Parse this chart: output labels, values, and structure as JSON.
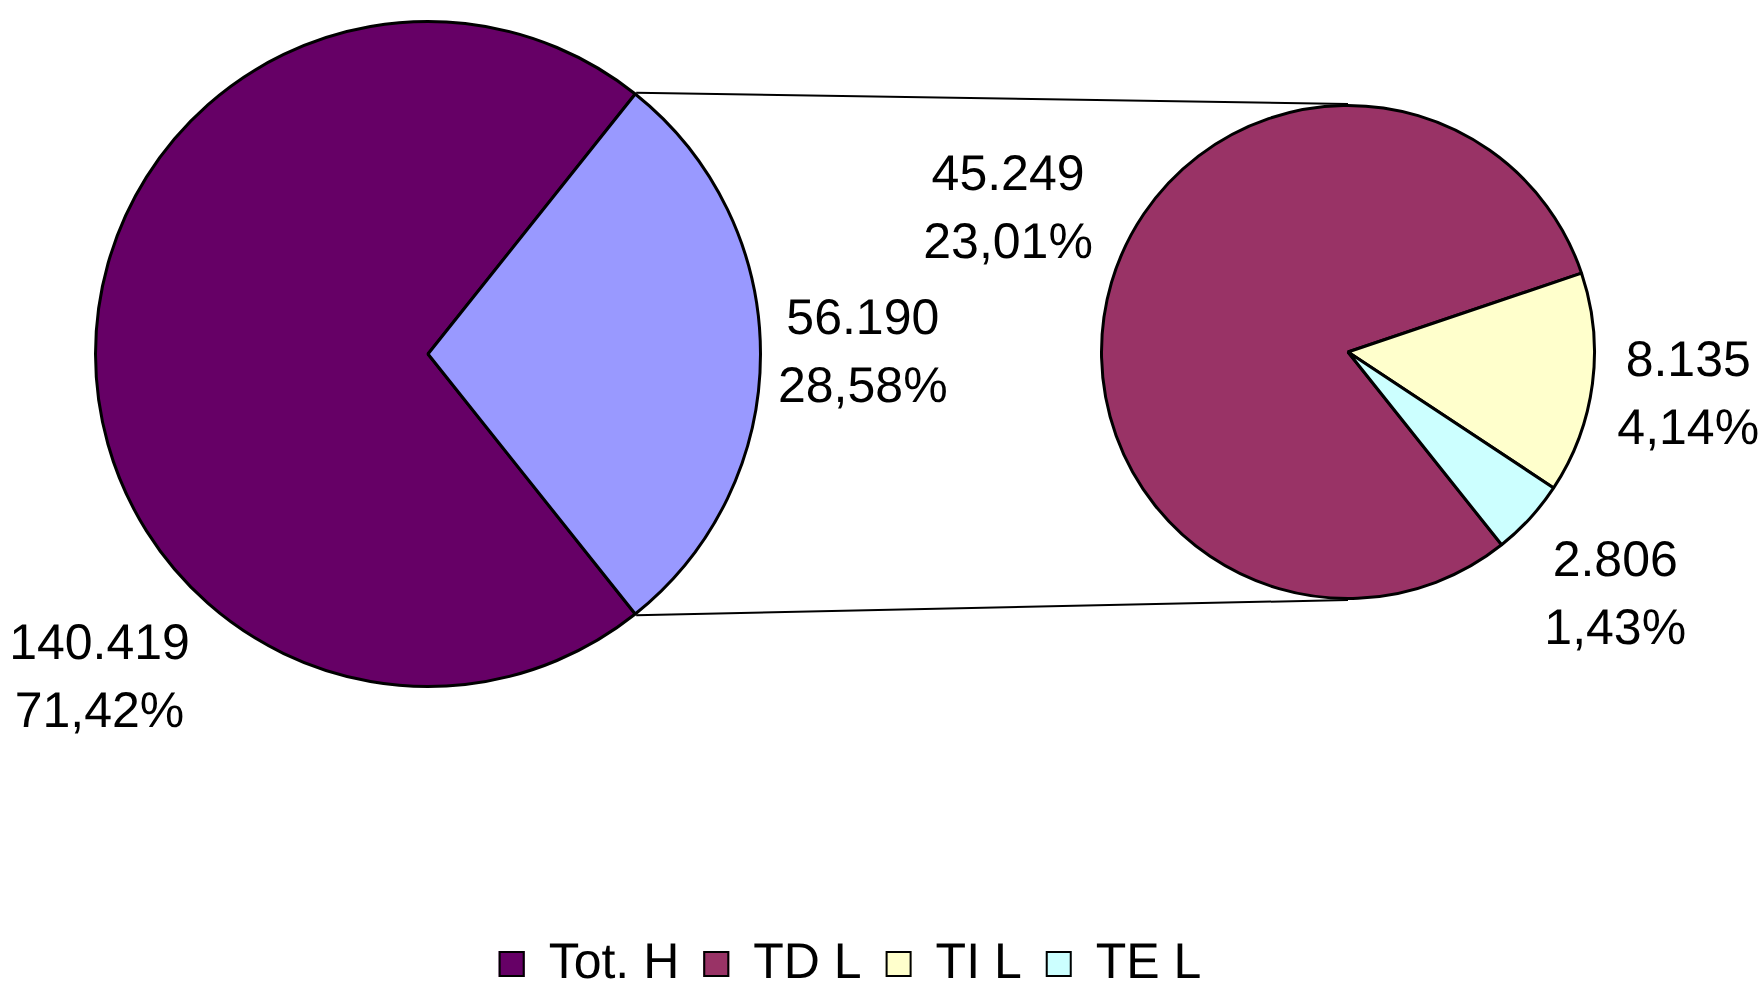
{
  "chart_data": [
    {
      "type": "pie",
      "categories": [
        "Tot. H",
        null
      ],
      "values": [
        140419,
        56190
      ],
      "colors": [
        "#660066",
        "#9999ff"
      ],
      "value_labels": [
        "140.419\n71,42%",
        "56.190\n28,58%"
      ],
      "legend": "bottom"
    },
    {
      "type": "pie",
      "categories": [
        "TD L",
        "TI L",
        "TE L"
      ],
      "values": [
        45249,
        8135,
        2806
      ],
      "colors": [
        "#993366",
        "#ffffcc",
        "#ccffff"
      ],
      "value_labels": [
        "45.249\n23,01%",
        "8.135\n4,14%",
        "2.806\n1,43%"
      ],
      "legend": "bottom"
    }
  ]
}
